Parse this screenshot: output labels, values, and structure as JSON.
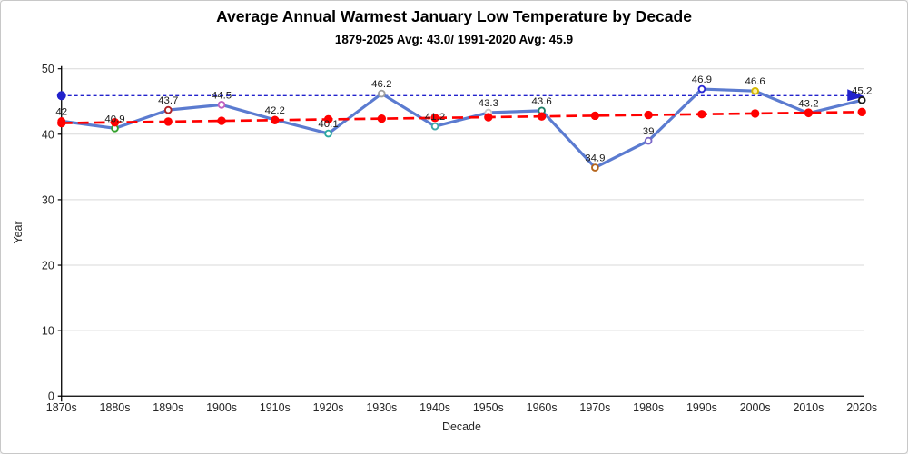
{
  "chart_data": {
    "type": "line",
    "title": "Average Annual Warmest January Low Temperature by Decade",
    "subtitle": "1879-2025 Avg: 43.0/ 1991-2020 Avg: 45.9",
    "xlabel": "Decade",
    "ylabel": "Year",
    "ylim": [
      0,
      50
    ],
    "yticks": [
      0,
      10,
      20,
      30,
      40,
      50
    ],
    "grid": "horizontal",
    "legend": "none",
    "categories": [
      "1870s",
      "1880s",
      "1890s",
      "1900s",
      "1910s",
      "1920s",
      "1930s",
      "1940s",
      "1950s",
      "1960s",
      "1970s",
      "1980s",
      "1990s",
      "2000s",
      "2010s",
      "2020s"
    ],
    "values": [
      42,
      40.9,
      43.7,
      44.5,
      42.2,
      40.1,
      46.2,
      41.2,
      43.3,
      43.6,
      34.9,
      39,
      46.9,
      46.6,
      43.2,
      45.2
    ],
    "data_labels": [
      "42",
      "40.9",
      "43.7",
      "44.5",
      "42.2",
      "40.1",
      "46.2",
      "41.2",
      "43.3",
      "43.6",
      "34.9",
      "39",
      "46.9",
      "46.6",
      "43.2",
      "45.2"
    ],
    "line_color": "#5B7BD0",
    "marker_colors": [
      "#FF0000",
      "#33A02C",
      "#B02428",
      "#C060C0",
      "#FF0000",
      "#2AA8A0",
      "#A0A0A0",
      "#3FA8A8",
      "#C8C8C8",
      "#1F7E66",
      "#B5651D",
      "#7B68C8",
      "#2A2AD4",
      "#D4B800",
      "#FF0000",
      "#1A1A1A"
    ],
    "marker_fills": [
      "#FFFFFF",
      "#FFFFFF",
      "#FFFFFF",
      "#FFFFFF",
      "#FFFFFF",
      "#FFFFFF",
      "#FFFFFF",
      "#FFFFFF",
      "#FFFFFF",
      "#FFFFFF",
      "#FFFFFF",
      "#FFFFFF",
      "#FFFFFF",
      "#FFEE99",
      "#FFFFFF",
      "#FFFFFF"
    ],
    "trend_line": {
      "color": "#FF0000",
      "style": "dashed",
      "start_value": 41.7,
      "end_value": 43.4,
      "marker": "filled-circle"
    },
    "reference_line": {
      "color": "#2222CC",
      "style": "dashed",
      "value": 45.9,
      "start_cap": "dot",
      "end_cap": "arrow"
    },
    "grid_color": "#D9D9D9",
    "axis_color": "#000000",
    "tick_label_color": "#262626",
    "data_label_color": "#1A1A1A"
  }
}
